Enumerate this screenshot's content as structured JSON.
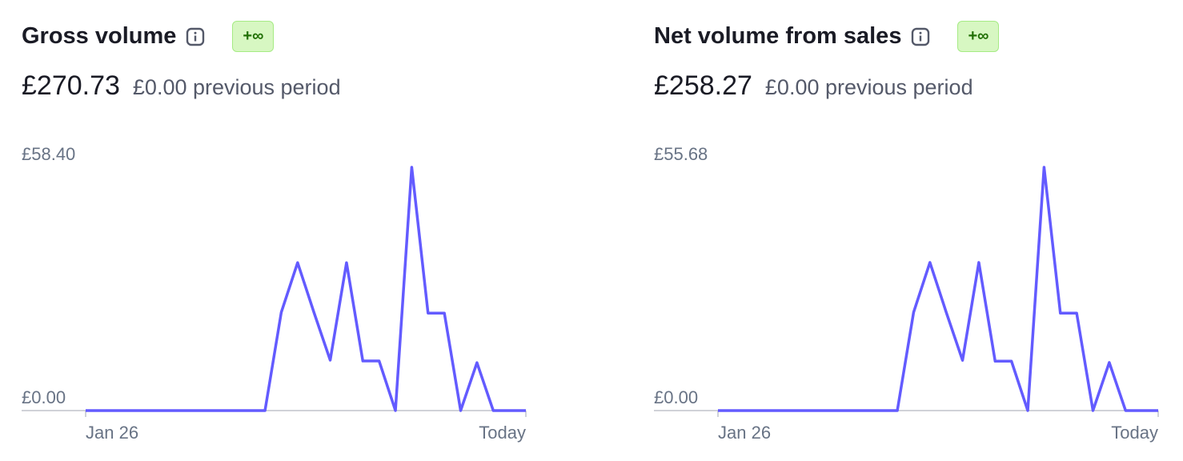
{
  "chart_data": [
    {
      "type": "line",
      "title": "Gross volume",
      "badge": "+∞",
      "total": "£270.73",
      "comparison": "£0.00 previous period",
      "color": "#635bff",
      "categories": [
        "Jan 26",
        null,
        null,
        null,
        null,
        null,
        null,
        null,
        null,
        null,
        null,
        null,
        null,
        null,
        null,
        null,
        null,
        null,
        null,
        null,
        null,
        null,
        null,
        null,
        null,
        null,
        null,
        "Today"
      ],
      "values": [
        0,
        0,
        0,
        0,
        0,
        0,
        0,
        0,
        0,
        0,
        0,
        0,
        23.6,
        35.5,
        23.6,
        12.1,
        35.5,
        11.9,
        11.9,
        0,
        58.4,
        23.4,
        23.4,
        0,
        11.5,
        0,
        0,
        0
      ],
      "ylim": [
        0,
        58.4
      ],
      "yticks": [
        {
          "value": 0,
          "label": "£0.00"
        },
        {
          "value": 58.4,
          "label": "£58.40"
        }
      ]
    },
    {
      "type": "line",
      "title": "Net volume from sales",
      "badge": "+∞",
      "total": "£258.27",
      "comparison": "£0.00 previous period",
      "color": "#635bff",
      "categories": [
        "Jan 26",
        null,
        null,
        null,
        null,
        null,
        null,
        null,
        null,
        null,
        null,
        null,
        null,
        null,
        null,
        null,
        null,
        null,
        null,
        null,
        null,
        null,
        null,
        null,
        null,
        null,
        null,
        "Today"
      ],
      "values": [
        0,
        0,
        0,
        0,
        0,
        0,
        0,
        0,
        0,
        0,
        0,
        0,
        22.5,
        33.9,
        22.5,
        11.5,
        33.9,
        11.3,
        11.3,
        0,
        55.68,
        22.3,
        22.3,
        0,
        11.0,
        0,
        0,
        0
      ],
      "ylim": [
        0,
        55.68
      ],
      "yticks": [
        {
          "value": 0,
          "label": "£0.00"
        },
        {
          "value": 55.68,
          "label": "£55.68"
        }
      ]
    }
  ]
}
